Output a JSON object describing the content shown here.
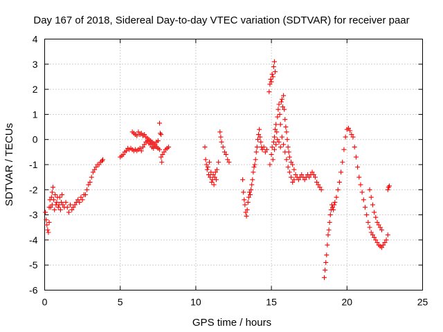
{
  "chart_data": {
    "type": "scatter",
    "title": "Day 167 of 2018, Sidereal Day-to-day VTEC variation (SDTVAR) for receiver paar",
    "xlabel": "GPS time / hours",
    "ylabel": "SDTVAR / TECUs",
    "xlim": [
      0,
      25
    ],
    "ylim": [
      -6,
      4
    ],
    "xticks": [
      0,
      5,
      10,
      15,
      20,
      25
    ],
    "yticks": [
      -6,
      -5,
      -4,
      -3,
      -2,
      -1,
      0,
      1,
      2,
      3,
      4
    ],
    "xtick_labels": [
      "0",
      "5",
      "10",
      "15",
      "20",
      "25"
    ],
    "ytick_labels": [
      "-6",
      "-5",
      "-4",
      "-3",
      "-2",
      "-1",
      "0",
      "1",
      "2",
      "3",
      "4"
    ],
    "grid": true,
    "marker": "+",
    "marker_color": "#ff0000",
    "series": [
      {
        "name": "SDTVAR",
        "points": [
          [
            0.05,
            -2.9
          ],
          [
            0.1,
            -3.2
          ],
          [
            0.15,
            -3.4
          ],
          [
            0.2,
            -3.6
          ],
          [
            0.25,
            -3.7
          ],
          [
            0.3,
            -3.3
          ],
          [
            0.3,
            -2.7
          ],
          [
            0.35,
            -2.4
          ],
          [
            0.4,
            -2.7
          ],
          [
            0.45,
            -2.3
          ],
          [
            0.5,
            -2.6
          ],
          [
            0.5,
            -2.1
          ],
          [
            0.55,
            -1.9
          ],
          [
            0.6,
            -2.4
          ],
          [
            0.65,
            -2.8
          ],
          [
            0.7,
            -2.2
          ],
          [
            0.75,
            -2.6
          ],
          [
            0.8,
            -2.5
          ],
          [
            0.85,
            -2.3
          ],
          [
            0.9,
            -2.7
          ],
          [
            0.95,
            -2.6
          ],
          [
            1.0,
            -2.3
          ],
          [
            1.05,
            -2.8
          ],
          [
            1.1,
            -2.5
          ],
          [
            1.15,
            -2.2
          ],
          [
            1.2,
            -2.6
          ],
          [
            1.3,
            -2.7
          ],
          [
            1.4,
            -2.5
          ],
          [
            1.5,
            -2.7
          ],
          [
            1.6,
            -2.9
          ],
          [
            1.7,
            -2.6
          ],
          [
            1.8,
            -2.8
          ],
          [
            1.9,
            -2.7
          ],
          [
            2.0,
            -2.6
          ],
          [
            2.1,
            -2.5
          ],
          [
            2.2,
            -2.4
          ],
          [
            2.3,
            -2.5
          ],
          [
            2.4,
            -2.3
          ],
          [
            2.5,
            -2.4
          ],
          [
            2.6,
            -2.2
          ],
          [
            2.7,
            -2.2
          ],
          [
            2.8,
            -2.0
          ],
          [
            2.9,
            -1.8
          ],
          [
            3.0,
            -1.7
          ],
          [
            3.1,
            -1.5
          ],
          [
            3.2,
            -1.3
          ],
          [
            3.3,
            -1.2
          ],
          [
            3.4,
            -1.1
          ],
          [
            3.5,
            -1.0
          ],
          [
            3.6,
            -1.0
          ],
          [
            3.7,
            -0.9
          ],
          [
            3.8,
            -0.85
          ],
          [
            3.85,
            -0.8
          ],
          [
            5.0,
            -0.7
          ],
          [
            5.1,
            -0.65
          ],
          [
            5.2,
            -0.6
          ],
          [
            5.3,
            -0.5
          ],
          [
            5.4,
            -0.45
          ],
          [
            5.5,
            -0.35
          ],
          [
            5.6,
            -0.4
          ],
          [
            5.7,
            -0.35
          ],
          [
            5.8,
            -0.4
          ],
          [
            5.9,
            -0.45
          ],
          [
            6.0,
            -0.4
          ],
          [
            6.1,
            -0.45
          ],
          [
            6.2,
            -0.4
          ],
          [
            6.3,
            -0.35
          ],
          [
            6.4,
            -0.45
          ],
          [
            6.5,
            -0.3
          ],
          [
            6.6,
            -0.2
          ],
          [
            6.7,
            -0.1
          ],
          [
            6.8,
            -0.05
          ],
          [
            6.9,
            -0.15
          ],
          [
            7.0,
            -0.2
          ],
          [
            7.1,
            -0.3
          ],
          [
            7.2,
            -0.35
          ],
          [
            7.3,
            -0.25
          ],
          [
            7.4,
            -0.3
          ],
          [
            7.5,
            -0.35
          ],
          [
            7.6,
            -0.4
          ],
          [
            7.7,
            -0.7
          ],
          [
            7.75,
            -0.9
          ],
          [
            7.8,
            -0.6
          ],
          [
            7.9,
            -0.5
          ],
          [
            8.0,
            -0.4
          ],
          [
            8.1,
            -0.35
          ],
          [
            8.2,
            -0.3
          ],
          [
            5.8,
            0.3
          ],
          [
            5.9,
            0.25
          ],
          [
            6.0,
            0.2
          ],
          [
            6.1,
            0.15
          ],
          [
            6.2,
            0.3
          ],
          [
            6.3,
            0.2
          ],
          [
            6.4,
            0.25
          ],
          [
            6.5,
            0.15
          ],
          [
            6.6,
            0.2
          ],
          [
            6.7,
            0.1
          ],
          [
            6.8,
            0.05
          ],
          [
            6.9,
            0.0
          ],
          [
            7.0,
            -0.05
          ],
          [
            7.1,
            -0.1
          ],
          [
            7.2,
            -0.15
          ],
          [
            7.3,
            -0.2
          ],
          [
            7.4,
            -0.1
          ],
          [
            7.5,
            -0.05
          ],
          [
            7.6,
            0.65
          ],
          [
            7.65,
            0.25
          ],
          [
            7.7,
            0.2
          ],
          [
            10.6,
            -0.3
          ],
          [
            10.65,
            -0.8
          ],
          [
            10.7,
            -1.0
          ],
          [
            10.75,
            -1.2
          ],
          [
            10.8,
            -1.1
          ],
          [
            10.85,
            -1.4
          ],
          [
            10.9,
            -0.9
          ],
          [
            10.95,
            -1.5
          ],
          [
            11.0,
            -1.3
          ],
          [
            11.05,
            -1.7
          ],
          [
            11.1,
            -1.6
          ],
          [
            11.15,
            -1.4
          ],
          [
            11.2,
            -1.8
          ],
          [
            11.25,
            -1.5
          ],
          [
            11.3,
            -1.3
          ],
          [
            11.35,
            -1.6
          ],
          [
            11.4,
            -1.2
          ],
          [
            11.5,
            -0.9
          ],
          [
            11.6,
            0.3
          ],
          [
            11.65,
            0.1
          ],
          [
            11.7,
            -0.1
          ],
          [
            11.8,
            -0.3
          ],
          [
            11.9,
            -0.5
          ],
          [
            12.0,
            -0.6
          ],
          [
            12.1,
            -0.8
          ],
          [
            12.2,
            -0.9
          ],
          [
            13.1,
            -1.6
          ],
          [
            13.15,
            -2.1
          ],
          [
            13.2,
            -2.4
          ],
          [
            13.25,
            -2.6
          ],
          [
            13.3,
            -2.9
          ],
          [
            13.35,
            -3.05
          ],
          [
            13.4,
            -2.8
          ],
          [
            13.45,
            -2.5
          ],
          [
            13.5,
            -2.3
          ],
          [
            13.55,
            -2.1
          ],
          [
            13.6,
            -2.2
          ],
          [
            13.65,
            -2.0
          ],
          [
            13.7,
            -1.8
          ],
          [
            13.75,
            -1.6
          ],
          [
            13.8,
            -1.3
          ],
          [
            13.85,
            -1.1
          ],
          [
            13.9,
            -1.0
          ],
          [
            13.95,
            -0.8
          ],
          [
            14.0,
            -0.5
          ],
          [
            14.05,
            -0.3
          ],
          [
            14.1,
            0.0
          ],
          [
            14.15,
            0.2
          ],
          [
            14.2,
            0.4
          ],
          [
            14.25,
            0.1
          ],
          [
            14.3,
            -0.1
          ],
          [
            14.35,
            -0.3
          ],
          [
            14.4,
            -0.4
          ],
          [
            14.5,
            -0.3
          ],
          [
            14.6,
            -0.5
          ],
          [
            14.7,
            -0.4
          ],
          [
            14.85,
            1.9
          ],
          [
            14.9,
            2.2
          ],
          [
            14.95,
            2.4
          ],
          [
            15.0,
            2.3
          ],
          [
            15.05,
            2.6
          ],
          [
            15.1,
            2.5
          ],
          [
            15.15,
            2.9
          ],
          [
            15.2,
            3.1
          ],
          [
            15.25,
            2.7
          ],
          [
            14.9,
            -1.0
          ],
          [
            15.0,
            -0.6
          ],
          [
            15.05,
            -0.3
          ],
          [
            15.1,
            -0.8
          ],
          [
            15.15,
            -0.1
          ],
          [
            15.2,
            0.1
          ],
          [
            15.25,
            0.4
          ],
          [
            15.3,
            0.6
          ],
          [
            15.35,
            0.3
          ],
          [
            15.4,
            0.9
          ],
          [
            15.45,
            1.2
          ],
          [
            15.5,
            1.4
          ],
          [
            15.55,
            1.0
          ],
          [
            15.6,
            0.6
          ],
          [
            15.65,
            1.5
          ],
          [
            15.7,
            1.6
          ],
          [
            15.75,
            1.3
          ],
          [
            15.8,
            1.75
          ],
          [
            15.85,
            1.2
          ],
          [
            15.9,
            0.8
          ],
          [
            15.95,
            0.5
          ],
          [
            16.0,
            0.3
          ],
          [
            16.05,
            0.0
          ],
          [
            16.1,
            -0.3
          ],
          [
            16.15,
            -0.5
          ],
          [
            16.2,
            -0.7
          ],
          [
            16.3,
            -0.9
          ],
          [
            16.4,
            -1.0
          ],
          [
            16.5,
            -1.2
          ],
          [
            16.6,
            -1.4
          ],
          [
            16.7,
            -1.5
          ],
          [
            16.8,
            -1.6
          ],
          [
            16.9,
            -1.5
          ],
          [
            17.0,
            -1.4
          ],
          [
            17.1,
            -1.5
          ],
          [
            17.2,
            -1.6
          ],
          [
            17.3,
            -1.5
          ],
          [
            17.4,
            -1.4
          ],
          [
            17.5,
            -1.5
          ],
          [
            17.6,
            -1.4
          ],
          [
            17.7,
            -1.3
          ],
          [
            17.8,
            -1.4
          ],
          [
            17.9,
            -1.5
          ],
          [
            18.0,
            -1.7
          ],
          [
            18.1,
            -1.8
          ],
          [
            18.2,
            -1.9
          ],
          [
            18.3,
            -2.0
          ],
          [
            15.2,
            -0.4
          ],
          [
            15.3,
            -0.2
          ],
          [
            15.4,
            0.0
          ],
          [
            15.5,
            -0.1
          ],
          [
            15.6,
            -0.3
          ],
          [
            15.7,
            0.1
          ],
          [
            15.8,
            -0.2
          ],
          [
            15.9,
            -0.5
          ],
          [
            16.0,
            -0.8
          ],
          [
            16.1,
            -1.1
          ],
          [
            16.2,
            -1.3
          ],
          [
            16.3,
            -1.5
          ],
          [
            16.4,
            -1.7
          ],
          [
            16.5,
            -1.6
          ],
          [
            18.5,
            -5.5
          ],
          [
            18.55,
            -5.2
          ],
          [
            18.6,
            -4.9
          ],
          [
            18.65,
            -4.6
          ],
          [
            18.7,
            -4.2
          ],
          [
            18.75,
            -3.8
          ],
          [
            18.8,
            -3.6
          ],
          [
            18.85,
            -3.3
          ],
          [
            18.9,
            -3.0
          ],
          [
            18.95,
            -2.8
          ],
          [
            19.0,
            -2.6
          ],
          [
            19.05,
            -2.7
          ],
          [
            19.1,
            -2.8
          ],
          [
            19.15,
            -2.6
          ],
          [
            19.2,
            -2.5
          ],
          [
            19.3,
            -2.3
          ],
          [
            19.4,
            -2.0
          ],
          [
            19.5,
            -1.7
          ],
          [
            19.6,
            -1.3
          ],
          [
            19.7,
            -0.9
          ],
          [
            19.8,
            -0.4
          ],
          [
            19.9,
            0.1
          ],
          [
            20.0,
            0.4
          ],
          [
            20.1,
            0.45
          ],
          [
            20.2,
            0.35
          ],
          [
            20.3,
            0.2
          ],
          [
            20.4,
            0.1
          ],
          [
            20.5,
            -0.3
          ],
          [
            20.6,
            -0.7
          ],
          [
            20.7,
            -1.1
          ],
          [
            20.8,
            -1.5
          ],
          [
            20.9,
            -1.8
          ],
          [
            21.0,
            -2.1
          ],
          [
            21.1,
            -2.4
          ],
          [
            21.2,
            -2.7
          ],
          [
            21.3,
            -3.0
          ],
          [
            21.4,
            -3.3
          ],
          [
            21.5,
            -3.5
          ],
          [
            21.6,
            -3.7
          ],
          [
            21.7,
            -3.8
          ],
          [
            21.8,
            -3.9
          ],
          [
            21.9,
            -4.0
          ],
          [
            22.0,
            -4.1
          ],
          [
            22.1,
            -4.2
          ],
          [
            22.2,
            -4.25
          ],
          [
            22.3,
            -4.3
          ],
          [
            22.4,
            -4.2
          ],
          [
            22.5,
            -4.1
          ],
          [
            22.6,
            -4.0
          ],
          [
            22.7,
            -3.8
          ],
          [
            21.5,
            -2.0
          ],
          [
            21.6,
            -2.3
          ],
          [
            21.7,
            -2.6
          ],
          [
            21.8,
            -2.9
          ],
          [
            21.9,
            -3.1
          ],
          [
            22.0,
            -3.3
          ],
          [
            22.1,
            -3.4
          ],
          [
            22.2,
            -3.5
          ],
          [
            22.3,
            -3.6
          ],
          [
            22.7,
            -2.0
          ],
          [
            22.75,
            -1.9
          ],
          [
            22.8,
            -1.85
          ]
        ]
      }
    ]
  }
}
